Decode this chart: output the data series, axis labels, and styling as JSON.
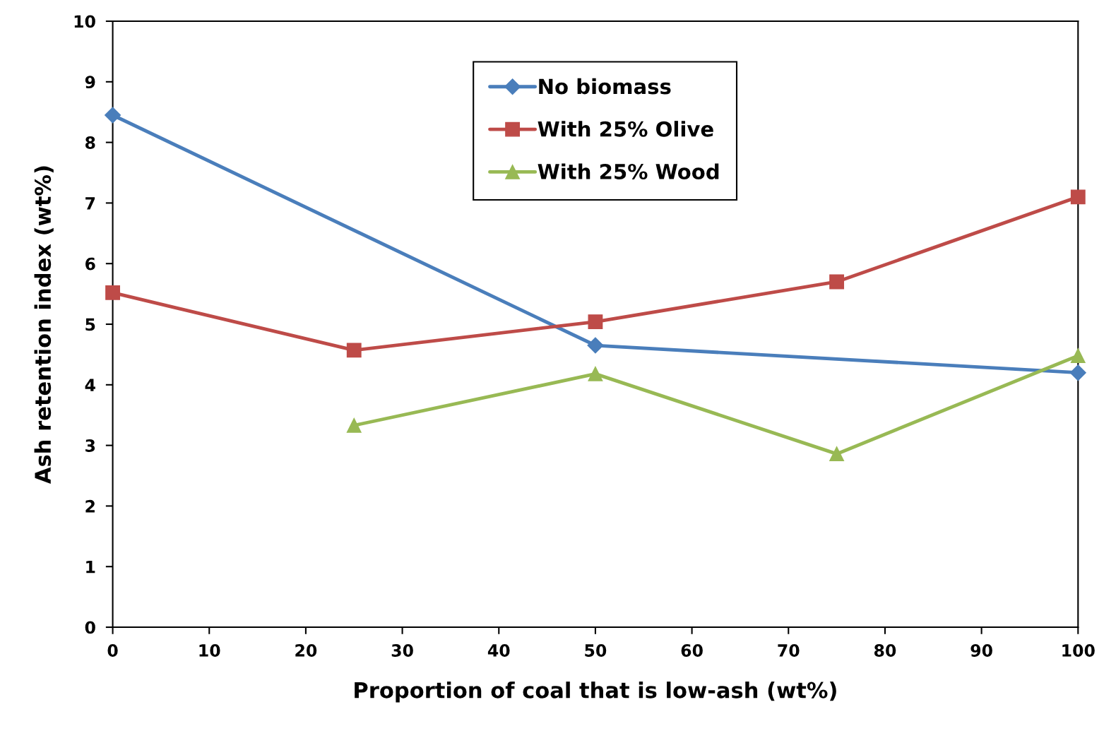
{
  "chart_data": {
    "type": "line",
    "xlabel": "Proportion of coal that is low-ash (wt%)",
    "ylabel": "Ash retention index (wt%)",
    "xlim": [
      0,
      100
    ],
    "xticks": [
      0,
      10,
      20,
      30,
      40,
      50,
      60,
      70,
      80,
      90,
      100
    ],
    "ylim": [
      0,
      10
    ],
    "yticks": [
      0,
      1,
      2,
      3,
      4,
      5,
      6,
      7,
      8,
      9,
      10
    ],
    "grid": false,
    "legend": "top",
    "line_style": "solid",
    "series": [
      {
        "name": "No biomass",
        "color": "#4a7ebb",
        "marker": "diamond",
        "x": [
          0,
          50,
          100
        ],
        "values": [
          8.45,
          4.65,
          4.2
        ]
      },
      {
        "name": "With 25% Olive",
        "color": "#be4b48",
        "marker": "square",
        "x": [
          0,
          25,
          50,
          75,
          100
        ],
        "values": [
          5.52,
          4.57,
          5.04,
          5.7,
          7.1
        ]
      },
      {
        "name": "With 25% Wood",
        "color": "#98b954",
        "marker": "triangle",
        "x": [
          25,
          50,
          75,
          100
        ],
        "values": [
          3.33,
          4.18,
          2.86,
          4.48
        ]
      }
    ]
  }
}
